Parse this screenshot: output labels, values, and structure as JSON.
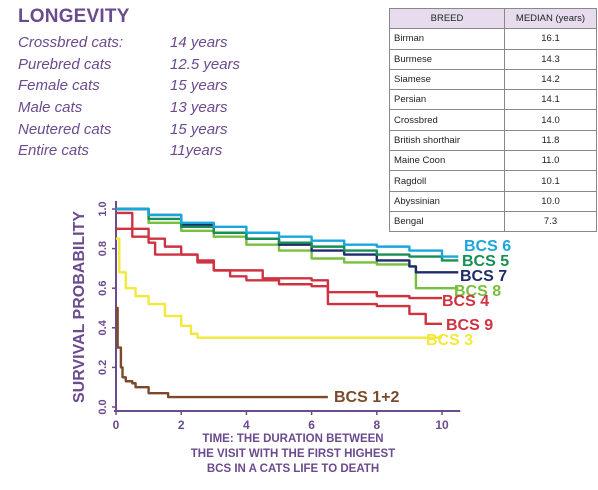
{
  "longevity": {
    "title": "LONGEVITY",
    "rows": [
      {
        "label": "Crossbred cats:",
        "value": "14 years"
      },
      {
        "label": "Purebred cats",
        "value": "12.5 years"
      },
      {
        "label": "Female cats",
        "value": "15 years"
      },
      {
        "label": "Male cats",
        "value": "13 years"
      },
      {
        "label": "Neutered cats",
        "value": "15 years"
      },
      {
        "label": "Entire cats",
        "value": "11years"
      }
    ]
  },
  "breed_table": {
    "headers": [
      "BREED",
      "MEDIAN (years)"
    ],
    "rows": [
      [
        "Birman",
        "16.1"
      ],
      [
        "Burmese",
        "14.3"
      ],
      [
        "Siamese",
        "14.2"
      ],
      [
        "Persian",
        "14.1"
      ],
      [
        "Crossbred",
        "14.0"
      ],
      [
        "British shorthair",
        "11.8"
      ],
      [
        "Maine Coon",
        "11.0"
      ],
      [
        "Ragdoll",
        "10.1"
      ],
      [
        "Abyssinian",
        "10.0"
      ],
      [
        "Bengal",
        "7.3"
      ]
    ]
  },
  "chart_data": {
    "type": "line",
    "ylabel": "SURVIVAL PROBABILITY",
    "xlabel_lines": [
      "TIME: THE DURATION BETWEEN",
      "THE VISIT WITH THE FIRST HIGHEST",
      "BCS IN A CATS LIFE TO DEATH"
    ],
    "xlim": [
      0,
      10.5
    ],
    "ylim": [
      0,
      1.0
    ],
    "x_ticks": [
      "0",
      "2",
      "4",
      "6",
      "8",
      "10"
    ],
    "y_ticks": [
      "0.0",
      "0.2",
      "0.4",
      "0.6",
      "0.8",
      "1.0"
    ],
    "grid": false,
    "series": [
      {
        "name": "BCS 6",
        "color": "#1aa6dc",
        "points": [
          [
            0,
            1.0
          ],
          [
            1,
            0.97
          ],
          [
            2,
            0.93
          ],
          [
            3,
            0.91
          ],
          [
            4,
            0.88
          ],
          [
            5,
            0.86
          ],
          [
            6,
            0.84
          ],
          [
            7,
            0.82
          ],
          [
            8,
            0.81
          ],
          [
            9,
            0.79
          ],
          [
            10,
            0.76
          ],
          [
            10.5,
            0.76
          ]
        ]
      },
      {
        "name": "BCS 5",
        "color": "#178f56",
        "points": [
          [
            0,
            1.0
          ],
          [
            1,
            0.95
          ],
          [
            2,
            0.91
          ],
          [
            3,
            0.88
          ],
          [
            4,
            0.85
          ],
          [
            5,
            0.83
          ],
          [
            6,
            0.81
          ],
          [
            7,
            0.79
          ],
          [
            8,
            0.77
          ],
          [
            9,
            0.76
          ],
          [
            10,
            0.74
          ],
          [
            10.5,
            0.74
          ]
        ]
      },
      {
        "name": "BCS 7",
        "color": "#1f2b6b",
        "points": [
          [
            0,
            1.0
          ],
          [
            1,
            0.97
          ],
          [
            2,
            0.92
          ],
          [
            3,
            0.88
          ],
          [
            4,
            0.85
          ],
          [
            5,
            0.82
          ],
          [
            6,
            0.79
          ],
          [
            7,
            0.77
          ],
          [
            8,
            0.74
          ],
          [
            9,
            0.71
          ],
          [
            9.2,
            0.68
          ],
          [
            10.5,
            0.68
          ]
        ]
      },
      {
        "name": "BCS 8",
        "color": "#78bf3e",
        "points": [
          [
            0,
            1.0
          ],
          [
            1,
            0.93
          ],
          [
            2,
            0.89
          ],
          [
            3,
            0.86
          ],
          [
            4,
            0.82
          ],
          [
            5,
            0.79
          ],
          [
            6,
            0.75
          ],
          [
            7,
            0.73
          ],
          [
            8,
            0.72
          ],
          [
            9,
            0.71
          ],
          [
            9.2,
            0.6
          ],
          [
            10.5,
            0.6
          ]
        ]
      },
      {
        "name": "BCS 4",
        "color": "#cf3240",
        "points": [
          [
            0,
            0.98
          ],
          [
            0.5,
            0.9
          ],
          [
            1,
            0.85
          ],
          [
            1.5,
            0.81
          ],
          [
            2,
            0.77
          ],
          [
            2.5,
            0.73
          ],
          [
            3,
            0.69
          ],
          [
            3.5,
            0.66
          ],
          [
            4,
            0.64
          ],
          [
            5,
            0.62
          ],
          [
            6,
            0.61
          ],
          [
            6.5,
            0.58
          ],
          [
            8,
            0.56
          ],
          [
            9,
            0.55
          ],
          [
            10,
            0.55
          ]
        ]
      },
      {
        "name": "BCS 9",
        "color": "#cf3240",
        "points": [
          [
            0,
            0.9
          ],
          [
            0.5,
            0.86
          ],
          [
            1,
            0.83
          ],
          [
            1.2,
            0.77
          ],
          [
            2,
            0.77
          ],
          [
            2.5,
            0.74
          ],
          [
            3,
            0.69
          ],
          [
            4.5,
            0.65
          ],
          [
            6,
            0.64
          ],
          [
            6.5,
            0.52
          ],
          [
            8,
            0.51
          ],
          [
            9,
            0.47
          ],
          [
            9.5,
            0.42
          ],
          [
            10,
            0.42
          ]
        ]
      },
      {
        "name": "BCS 3",
        "color": "#f2e93b",
        "points": [
          [
            0,
            0.85
          ],
          [
            0.1,
            0.68
          ],
          [
            0.3,
            0.6
          ],
          [
            0.6,
            0.56
          ],
          [
            1,
            0.52
          ],
          [
            1.5,
            0.46
          ],
          [
            2,
            0.41
          ],
          [
            2.3,
            0.37
          ],
          [
            2.5,
            0.35
          ],
          [
            6,
            0.35
          ],
          [
            10,
            0.35
          ]
        ]
      },
      {
        "name": "BCS 1+2",
        "color": "#7a4a2a",
        "points": [
          [
            0,
            0.5
          ],
          [
            0.05,
            0.3
          ],
          [
            0.15,
            0.2
          ],
          [
            0.2,
            0.15
          ],
          [
            0.3,
            0.13
          ],
          [
            0.5,
            0.12
          ],
          [
            0.6,
            0.1
          ],
          [
            0.8,
            0.1
          ],
          [
            1,
            0.07
          ],
          [
            1.5,
            0.07
          ],
          [
            1.6,
            0.05
          ],
          [
            6.5,
            0.05
          ]
        ]
      }
    ]
  }
}
